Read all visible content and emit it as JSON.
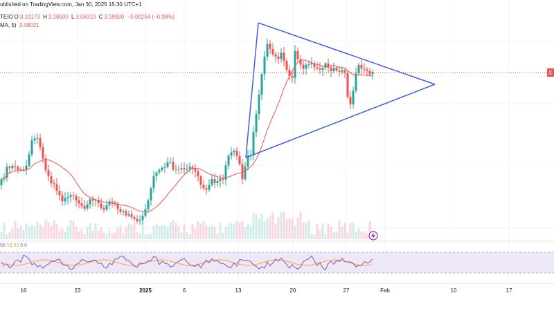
{
  "header": {
    "published": "ublished on TradingView.com, Jan 30, 2025 15:30 UTC+1",
    "symbol_suffix": "TEIO",
    "o_label": "O",
    "o_value": "3.10173",
    "h_label": "H",
    "h_value": "3.10500",
    "l_label": "L",
    "l_value": "3.08310",
    "c_label": "C",
    "c_value": "3.09920",
    "change": "−0.00254 (−0.08%)",
    "ma_label": "MA, 5)",
    "ma_value": "3.08021"
  },
  "price_tag": "X",
  "oscillator": {
    "value1": "55",
    "sep1": "0",
    "value2": "53.93",
    "sep2": "0"
  },
  "colors": {
    "up": "#26a69a",
    "down": "#ef5350",
    "ma": "#ef5350",
    "triangle": "#3f5ee8",
    "osc_line": "#7e57c2",
    "osc_signal": "#f9a825",
    "osc_band": "#ede7f6",
    "price_line": "#ef5350",
    "flash": "#9c27b0"
  },
  "icons": {
    "flash": "lightning-icon"
  },
  "chart_data": {
    "type": "candlestick",
    "x_ticks": [
      {
        "label": "16",
        "bold": false
      },
      {
        "label": "23",
        "bold": false
      },
      {
        "label": "2025",
        "bold": true
      },
      {
        "label": "6",
        "bold": false
      },
      {
        "label": "13",
        "bold": false
      },
      {
        "label": "20",
        "bold": false
      },
      {
        "label": "27",
        "bold": false
      },
      {
        "label": "Feb",
        "bold": false
      },
      {
        "label": "10",
        "bold": false
      },
      {
        "label": "17",
        "bold": false
      }
    ],
    "last_close": 3.0992,
    "ma_last": 3.08021,
    "oscillator_values": [
      55,
      53.93
    ],
    "triangle_pattern": "symmetrical",
    "grid": true
  }
}
